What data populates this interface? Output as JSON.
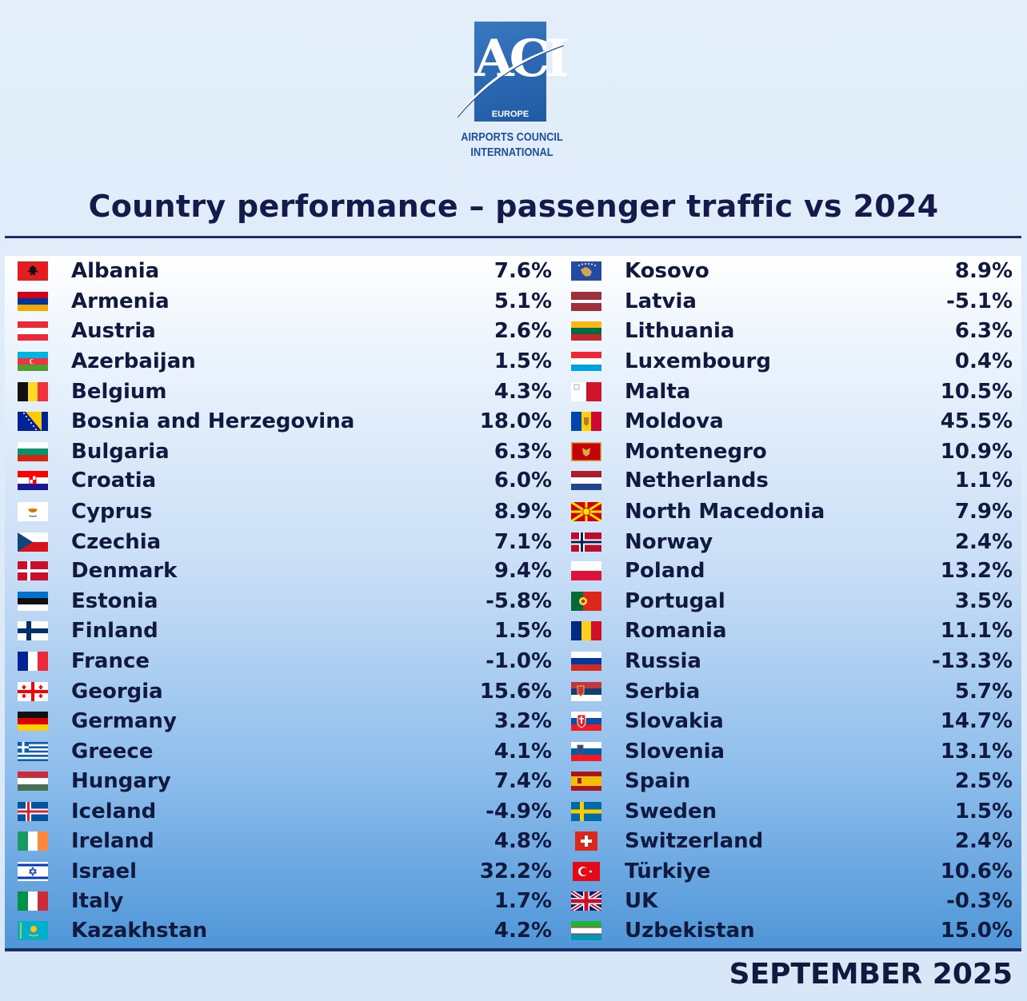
{
  "logo": {
    "mark": "ACI",
    "sub": "EUROPE",
    "name_line1": "AIRPORTS COUNCIL",
    "name_line2": "INTERNATIONAL"
  },
  "title": "Country performance – passenger traffic vs 2024",
  "footer": "SEPTEMBER 2025",
  "left": [
    {
      "country": "Albania",
      "value": "7.6%",
      "flag": "albania-flag"
    },
    {
      "country": "Armenia",
      "value": "5.1%",
      "flag": "armenia-flag"
    },
    {
      "country": "Austria",
      "value": "2.6%",
      "flag": "austria-flag"
    },
    {
      "country": "Azerbaijan",
      "value": "1.5%",
      "flag": "azerbaijan-flag"
    },
    {
      "country": "Belgium",
      "value": "4.3%",
      "flag": "belgium-flag"
    },
    {
      "country": "Bosnia and Herzegovina",
      "value": "18.0%",
      "flag": "bosnia-flag"
    },
    {
      "country": "Bulgaria",
      "value": "6.3%",
      "flag": "bulgaria-flag"
    },
    {
      "country": "Croatia",
      "value": "6.0%",
      "flag": "croatia-flag"
    },
    {
      "country": "Cyprus",
      "value": "8.9%",
      "flag": "cyprus-flag"
    },
    {
      "country": "Czechia",
      "value": "7.1%",
      "flag": "czechia-flag"
    },
    {
      "country": "Denmark",
      "value": "9.4%",
      "flag": "denmark-flag"
    },
    {
      "country": "Estonia",
      "value": "-5.8%",
      "flag": "estonia-flag"
    },
    {
      "country": "Finland",
      "value": "1.5%",
      "flag": "finland-flag"
    },
    {
      "country": "France",
      "value": "-1.0%",
      "flag": "france-flag"
    },
    {
      "country": "Georgia",
      "value": "15.6%",
      "flag": "georgia-flag"
    },
    {
      "country": "Germany",
      "value": "3.2%",
      "flag": "germany-flag"
    },
    {
      "country": "Greece",
      "value": "4.1%",
      "flag": "greece-flag"
    },
    {
      "country": "Hungary",
      "value": "7.4%",
      "flag": "hungary-flag"
    },
    {
      "country": "Iceland",
      "value": "-4.9%",
      "flag": "iceland-flag"
    },
    {
      "country": "Ireland",
      "value": "4.8%",
      "flag": "ireland-flag"
    },
    {
      "country": "Israel",
      "value": "32.2%",
      "flag": "israel-flag"
    },
    {
      "country": "Italy",
      "value": "1.7%",
      "flag": "italy-flag"
    },
    {
      "country": "Kazakhstan",
      "value": "4.2%",
      "flag": "kazakhstan-flag"
    }
  ],
  "right": [
    {
      "country": "Kosovo",
      "value": "8.9%",
      "flag": "kosovo-flag"
    },
    {
      "country": "Latvia",
      "value": "-5.1%",
      "flag": "latvia-flag"
    },
    {
      "country": "Lithuania",
      "value": "6.3%",
      "flag": "lithuania-flag"
    },
    {
      "country": "Luxembourg",
      "value": "0.4%",
      "flag": "luxembourg-flag"
    },
    {
      "country": "Malta",
      "value": "10.5%",
      "flag": "malta-flag"
    },
    {
      "country": "Moldova",
      "value": "45.5%",
      "flag": "moldova-flag"
    },
    {
      "country": "Montenegro",
      "value": "10.9%",
      "flag": "montenegro-flag"
    },
    {
      "country": "Netherlands",
      "value": "1.1%",
      "flag": "netherlands-flag"
    },
    {
      "country": "North Macedonia",
      "value": "7.9%",
      "flag": "north-macedonia-flag"
    },
    {
      "country": "Norway",
      "value": "2.4%",
      "flag": "norway-flag"
    },
    {
      "country": "Poland",
      "value": "13.2%",
      "flag": "poland-flag"
    },
    {
      "country": "Portugal",
      "value": "3.5%",
      "flag": "portugal-flag"
    },
    {
      "country": "Romania",
      "value": "11.1%",
      "flag": "romania-flag"
    },
    {
      "country": "Russia",
      "value": "-13.3%",
      "flag": "russia-flag"
    },
    {
      "country": "Serbia",
      "value": "5.7%",
      "flag": "serbia-flag"
    },
    {
      "country": "Slovakia",
      "value": "14.7%",
      "flag": "slovakia-flag"
    },
    {
      "country": "Slovenia",
      "value": "13.1%",
      "flag": "slovenia-flag"
    },
    {
      "country": "Spain",
      "value": "2.5%",
      "flag": "spain-flag"
    },
    {
      "country": "Sweden",
      "value": "1.5%",
      "flag": "sweden-flag"
    },
    {
      "country": "Switzerland",
      "value": "2.4%",
      "flag": "switzerland-flag"
    },
    {
      "country": "Türkiye",
      "value": "10.6%",
      "flag": "turkiye-flag"
    },
    {
      "country": "UK",
      "value": "-0.3%",
      "flag": "uk-flag"
    },
    {
      "country": "Uzbekistan",
      "value": "15.0%",
      "flag": "uzbekistan-flag"
    }
  ]
}
